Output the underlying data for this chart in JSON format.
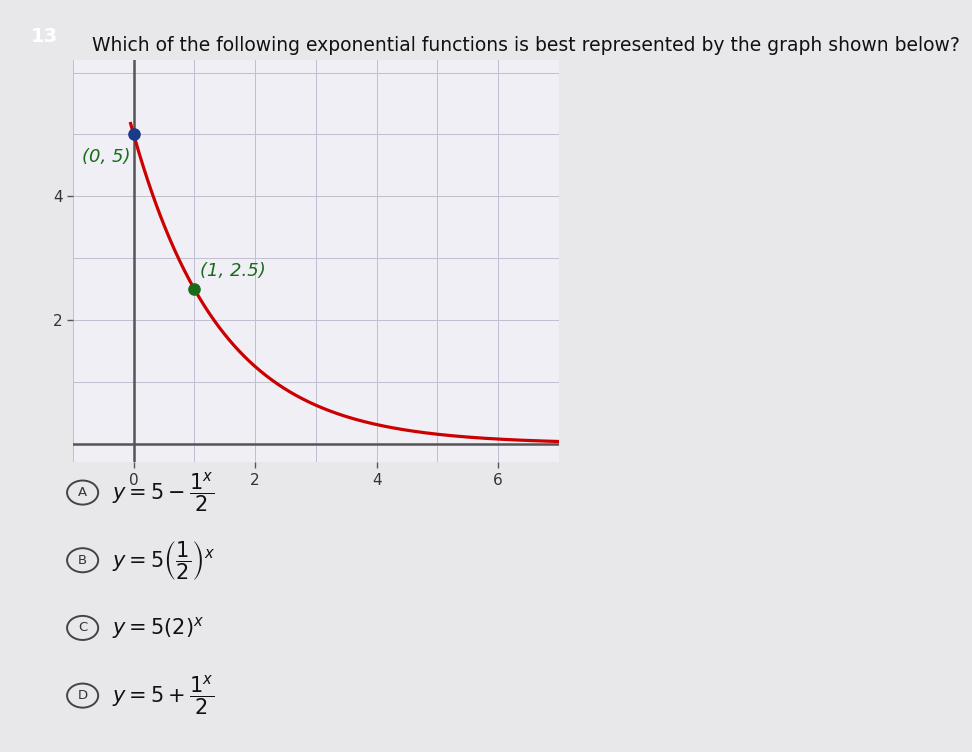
{
  "title": "Which of the following exponential functions is best represented by the graph shown below?",
  "question_number": "13",
  "graph_xlim": [
    -1,
    7
  ],
  "graph_ylim": [
    -0.3,
    6.2
  ],
  "graph_xticks": [
    0,
    2,
    4,
    6
  ],
  "graph_yticks": [
    2,
    4
  ],
  "curve_color": "#cc0000",
  "point1": [
    0,
    5
  ],
  "point1_color": "#1a3a8a",
  "point1_label": "(0, 5)",
  "point2": [
    1,
    2.5
  ],
  "point2_color": "#1a6b1a",
  "point2_label": "(1, 2.5)",
  "point2_label_color": "#1a6b1a",
  "options": [
    {
      "letter": "A",
      "text": "$y = 5 - \\dfrac{1^x}{2}$"
    },
    {
      "letter": "B",
      "text": "$y = 5\\left(\\dfrac{1}{2}\\right)^x$"
    },
    {
      "letter": "C",
      "text": "$y = 5(2)^x$"
    },
    {
      "letter": "D",
      "text": "$y = 5 + \\dfrac{1^x}{2}$"
    }
  ],
  "bg_color": "#e8e8ea",
  "graph_bg": "#f0eff5",
  "grid_color": "#c0bfd0",
  "axis_color": "#555555",
  "title_fontsize": 13.5,
  "option_fontsize": 15,
  "badge_color": "#555555"
}
